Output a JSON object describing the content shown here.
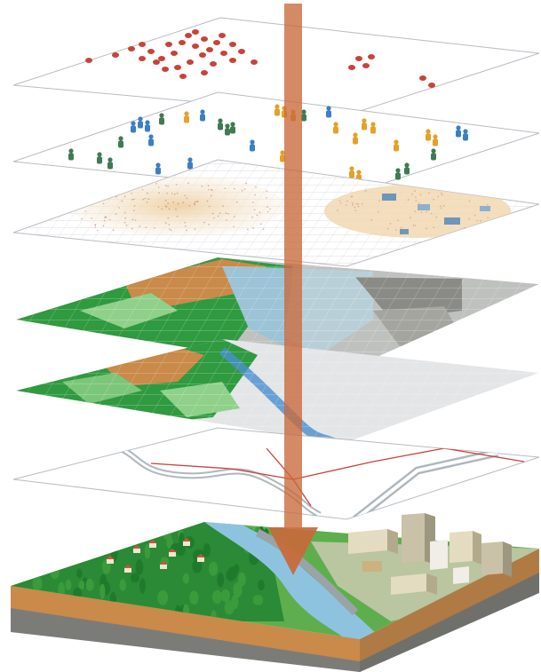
{
  "diagram": {
    "kind": "gis-layer-stack",
    "layers": [
      {
        "id": "points-events"
      },
      {
        "id": "people-points"
      },
      {
        "id": "survey-density"
      },
      {
        "id": "elevation-raster"
      },
      {
        "id": "land-cover-terrain"
      },
      {
        "id": "road-river-network"
      },
      {
        "id": "real-world-block"
      }
    ],
    "arrow": {
      "direction": "down"
    }
  },
  "colors": {
    "background": "#ffffff",
    "layer_outline": "#b8bcc2",
    "event_dot": "#c9423a",
    "person_blue": "#3b7fc4",
    "person_green": "#3f7a55",
    "person_orange": "#e3a127",
    "density_fill": "#f2e0c6",
    "forest_green": "#2f9a3f",
    "light_green": "#8fd08a",
    "soil_brown": "#c98a4a",
    "water_blue": "#8ec3e0",
    "rock_grey": "#7b7c78",
    "road_grey": "#a7b0b6",
    "arrow": "#c8693a"
  }
}
